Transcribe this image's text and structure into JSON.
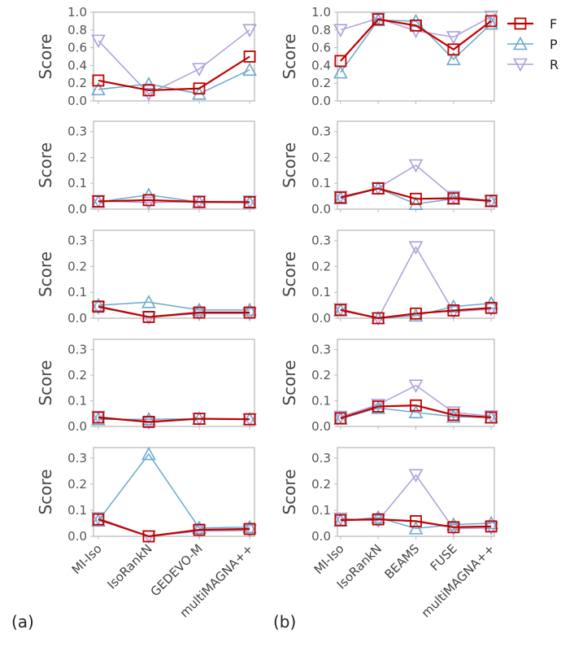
{
  "colors": {
    "F": "#c00000",
    "P": "#6aa9cc",
    "R": "#aaa0dc",
    "axis": "#bbbbbb"
  },
  "legend": [
    {
      "key": "F",
      "label": "F",
      "marker": "square"
    },
    {
      "key": "P",
      "label": "P",
      "marker": "triangle-up"
    },
    {
      "key": "R",
      "label": "R",
      "marker": "triangle-down"
    }
  ],
  "panel_labels": [
    "(a)",
    "(b)"
  ],
  "chart_data": [
    {
      "type": "line",
      "panel": "a",
      "row": 0,
      "categories": [
        "MI-Iso",
        "IsoRankN",
        "GEDEVO-M",
        "multiMAGNA++"
      ],
      "ylabel": "Score",
      "ylim": [
        0,
        1.0
      ],
      "yticks": [
        "0.0",
        "0.2",
        "0.4",
        "0.6",
        "0.8",
        "1.0"
      ],
      "ytick_values": [
        0,
        0.2,
        0.4,
        0.6,
        0.8,
        1.0
      ],
      "series": [
        {
          "name": "F",
          "values": [
            0.23,
            0.12,
            0.14,
            0.5
          ]
        },
        {
          "name": "P",
          "values": [
            0.13,
            0.19,
            0.08,
            0.35
          ]
        },
        {
          "name": "R",
          "values": [
            0.68,
            0.08,
            0.36,
            0.8
          ]
        }
      ]
    },
    {
      "type": "line",
      "panel": "b",
      "row": 0,
      "categories": [
        "MI-Iso",
        "IsoRankN",
        "BEAMS",
        "FUSE",
        "multiMAGNA++"
      ],
      "ylabel": "Score",
      "ylim": [
        0,
        1.0
      ],
      "yticks": [
        "0.0",
        "0.2",
        "0.4",
        "0.6",
        "0.8",
        "1.0"
      ],
      "ytick_values": [
        0,
        0.2,
        0.4,
        0.6,
        0.8,
        1.0
      ],
      "series": [
        {
          "name": "F",
          "values": [
            0.45,
            0.92,
            0.85,
            0.58,
            0.9
          ]
        },
        {
          "name": "P",
          "values": [
            0.32,
            0.91,
            0.9,
            0.47,
            0.87
          ]
        },
        {
          "name": "R",
          "values": [
            0.8,
            0.93,
            0.79,
            0.72,
            0.95
          ]
        }
      ]
    },
    {
      "type": "line",
      "panel": "a",
      "row": 1,
      "categories": [
        "MI-Iso",
        "IsoRankN",
        "GEDEVO-M",
        "multiMAGNA++"
      ],
      "ylabel": "Score",
      "ylim": [
        0,
        0.34
      ],
      "yticks": [
        "0.0",
        "0.1",
        "0.2",
        "0.3"
      ],
      "ytick_values": [
        0,
        0.1,
        0.2,
        0.3
      ],
      "series": [
        {
          "name": "F",
          "values": [
            0.03,
            0.035,
            0.028,
            0.027
          ]
        },
        {
          "name": "P",
          "values": [
            0.028,
            0.055,
            0.027,
            0.025
          ]
        },
        {
          "name": "R",
          "values": [
            0.032,
            0.025,
            0.03,
            0.03
          ]
        }
      ]
    },
    {
      "type": "line",
      "panel": "b",
      "row": 1,
      "categories": [
        "MI-Iso",
        "IsoRankN",
        "BEAMS",
        "FUSE",
        "multiMAGNA++"
      ],
      "ylabel": "Score",
      "ylim": [
        0,
        0.34
      ],
      "yticks": [
        "0.0",
        "0.1",
        "0.2",
        "0.3"
      ],
      "ytick_values": [
        0,
        0.1,
        0.2,
        0.3
      ],
      "series": [
        {
          "name": "F",
          "values": [
            0.045,
            0.08,
            0.04,
            0.042,
            0.032
          ]
        },
        {
          "name": "P",
          "values": [
            0.042,
            0.08,
            0.02,
            0.04,
            0.03
          ]
        },
        {
          "name": "R",
          "values": [
            0.048,
            0.082,
            0.17,
            0.048,
            0.033
          ]
        }
      ]
    },
    {
      "type": "line",
      "panel": "a",
      "row": 2,
      "categories": [
        "MI-Iso",
        "IsoRankN",
        "GEDEVO-M",
        "multiMAGNA++"
      ],
      "ylabel": "Score",
      "ylim": [
        0,
        0.34
      ],
      "yticks": [
        "0.0",
        "0.1",
        "0.2",
        "0.3"
      ],
      "ytick_values": [
        0,
        0.1,
        0.2,
        0.3
      ],
      "series": [
        {
          "name": "F",
          "values": [
            0.045,
            0.005,
            0.022,
            0.022
          ]
        },
        {
          "name": "P",
          "values": [
            0.05,
            0.062,
            0.032,
            0.032
          ]
        },
        {
          "name": "R",
          "values": [
            0.042,
            0.003,
            0.018,
            0.018
          ]
        }
      ]
    },
    {
      "type": "line",
      "panel": "b",
      "row": 2,
      "categories": [
        "MI-Iso",
        "IsoRankN",
        "BEAMS",
        "FUSE",
        "multiMAGNA++"
      ],
      "ylabel": "Score",
      "ylim": [
        0,
        0.34
      ],
      "yticks": [
        "0.0",
        "0.1",
        "0.2",
        "0.3"
      ],
      "ytick_values": [
        0,
        0.1,
        0.2,
        0.3
      ],
      "series": [
        {
          "name": "F",
          "values": [
            0.032,
            0.0,
            0.018,
            0.03,
            0.04
          ]
        },
        {
          "name": "P",
          "values": [
            0.03,
            0.0,
            0.01,
            0.045,
            0.058
          ]
        },
        {
          "name": "R",
          "values": [
            0.035,
            0.0,
            0.275,
            0.025,
            0.035
          ]
        }
      ]
    },
    {
      "type": "line",
      "panel": "a",
      "row": 3,
      "categories": [
        "MI-Iso",
        "IsoRankN",
        "GEDEVO-M",
        "multiMAGNA++"
      ],
      "ylabel": "Score",
      "ylim": [
        0,
        0.34
      ],
      "yticks": [
        "0.0",
        "0.1",
        "0.2",
        "0.3"
      ],
      "ytick_values": [
        0,
        0.1,
        0.2,
        0.3
      ],
      "series": [
        {
          "name": "F",
          "values": [
            0.035,
            0.018,
            0.03,
            0.028
          ]
        },
        {
          "name": "P",
          "values": [
            0.028,
            0.028,
            0.03,
            0.028
          ]
        },
        {
          "name": "R",
          "values": [
            0.038,
            0.015,
            0.03,
            0.028
          ]
        }
      ]
    },
    {
      "type": "line",
      "panel": "b",
      "row": 3,
      "categories": [
        "MI-Iso",
        "IsoRankN",
        "BEAMS",
        "FUSE",
        "multiMAGNA++"
      ],
      "ylabel": "Score",
      "ylim": [
        0,
        0.34
      ],
      "yticks": [
        "0.0",
        "0.1",
        "0.2",
        "0.3"
      ],
      "ytick_values": [
        0,
        0.1,
        0.2,
        0.3
      ],
      "series": [
        {
          "name": "F",
          "values": [
            0.032,
            0.078,
            0.082,
            0.045,
            0.035
          ]
        },
        {
          "name": "P",
          "values": [
            0.03,
            0.072,
            0.055,
            0.038,
            0.035
          ]
        },
        {
          "name": "R",
          "values": [
            0.038,
            0.085,
            0.16,
            0.055,
            0.04
          ]
        }
      ]
    },
    {
      "type": "line",
      "panel": "a",
      "row": 4,
      "categories": [
        "MI-Iso",
        "IsoRankN",
        "GEDEVO-M",
        "multiMAGNA++"
      ],
      "ylabel": "Score",
      "ylim": [
        0,
        0.34
      ],
      "yticks": [
        "0.0",
        "0.1",
        "0.2",
        "0.3"
      ],
      "ytick_values": [
        0,
        0.1,
        0.2,
        0.3
      ],
      "series": [
        {
          "name": "F",
          "values": [
            0.065,
            0.0,
            0.025,
            0.028
          ]
        },
        {
          "name": "P",
          "values": [
            0.06,
            0.315,
            0.032,
            0.035
          ]
        },
        {
          "name": "R",
          "values": [
            0.07,
            0.0,
            0.02,
            0.022
          ]
        }
      ]
    },
    {
      "type": "line",
      "panel": "b",
      "row": 4,
      "categories": [
        "MI-Iso",
        "IsoRankN",
        "BEAMS",
        "FUSE",
        "multiMAGNA++"
      ],
      "ylabel": "Score",
      "ylim": [
        0,
        0.34
      ],
      "yticks": [
        "0.0",
        "0.1",
        "0.2",
        "0.3"
      ],
      "ytick_values": [
        0,
        0.1,
        0.2,
        0.3
      ],
      "series": [
        {
          "name": "F",
          "values": [
            0.062,
            0.065,
            0.058,
            0.035,
            0.038
          ]
        },
        {
          "name": "P",
          "values": [
            0.06,
            0.072,
            0.03,
            0.045,
            0.05
          ]
        },
        {
          "name": "R",
          "values": [
            0.068,
            0.06,
            0.235,
            0.03,
            0.032
          ]
        }
      ]
    }
  ]
}
